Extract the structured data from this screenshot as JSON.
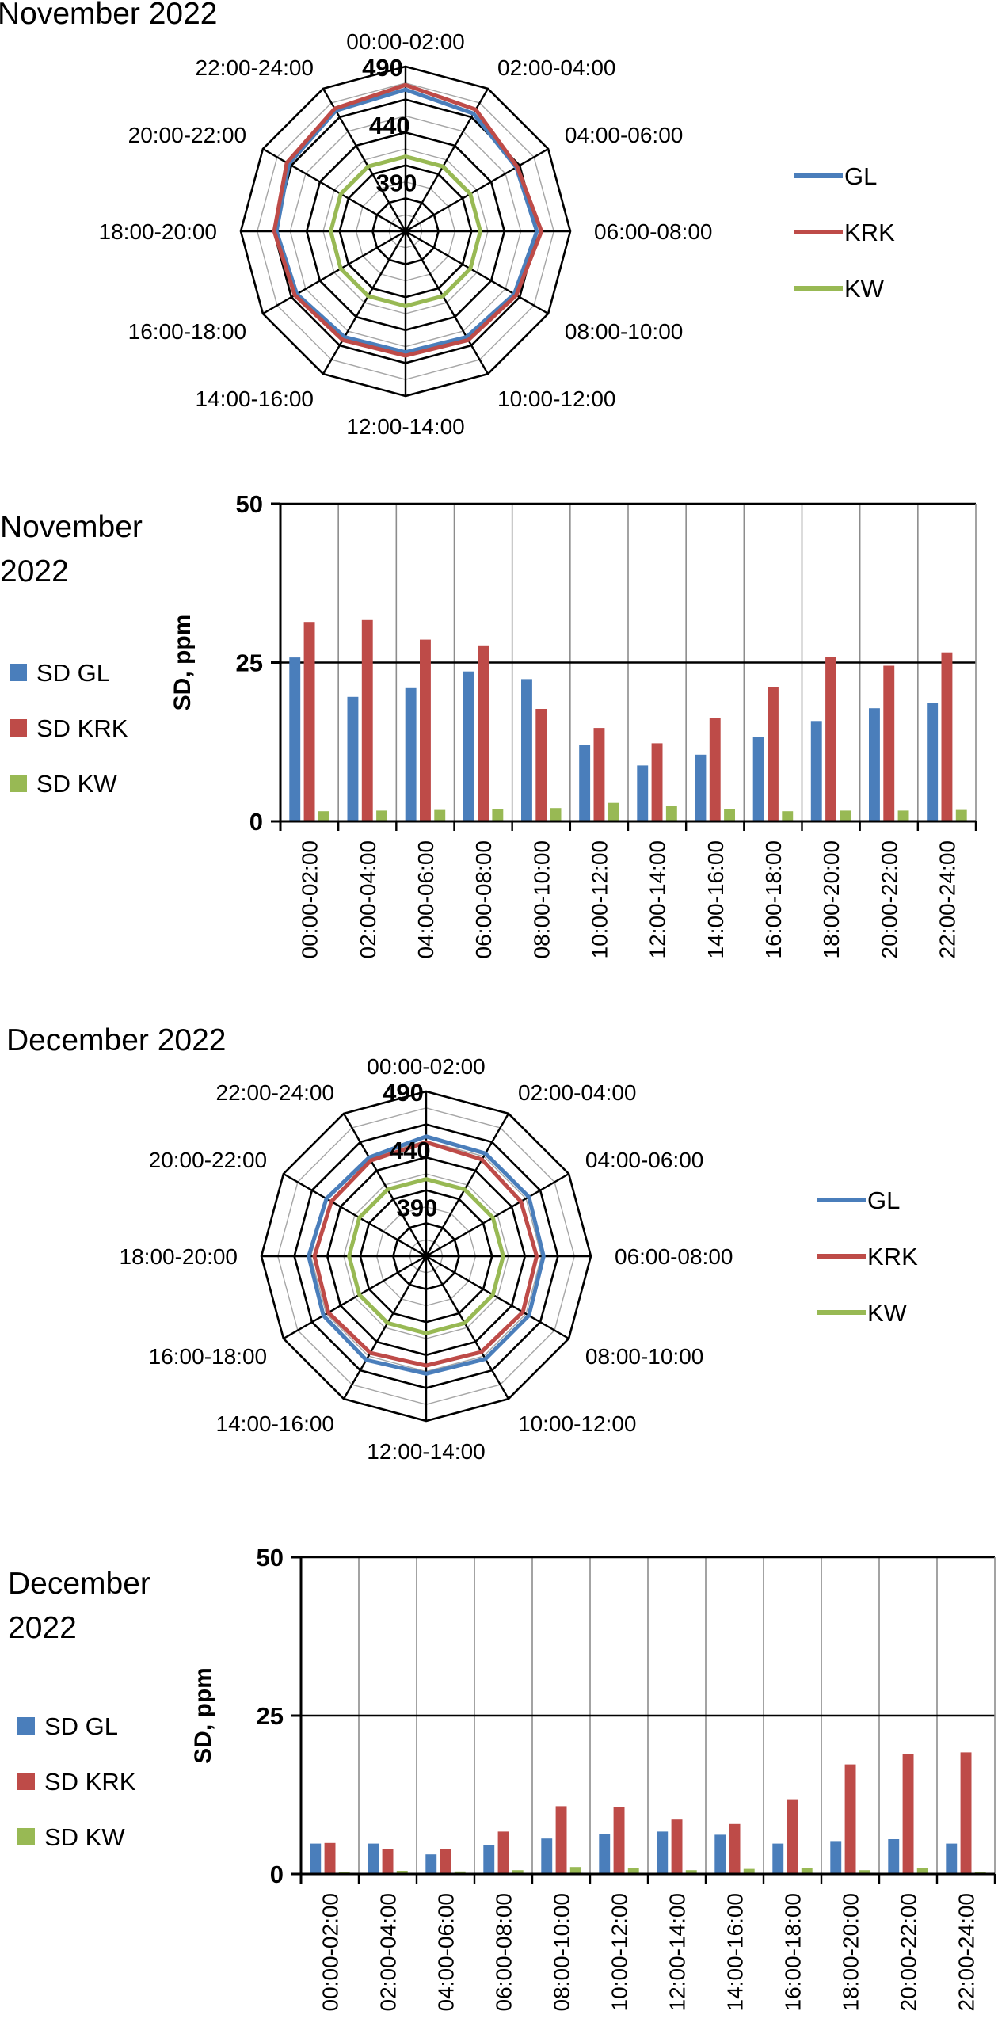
{
  "colors": {
    "GL": "#4a7ebb",
    "KRK": "#be4b48",
    "KW": "#98b954",
    "grid": "#a6a6a6",
    "axis": "#000000"
  },
  "chart_data": [
    {
      "type": "radar",
      "title": "November 2022",
      "categories": [
        "00:00-02:00",
        "02:00-04:00",
        "04:00-06:00",
        "06:00-08:00",
        "08:00-10:00",
        "10:00-12:00",
        "12:00-14:00",
        "14:00-16:00",
        "16:00-18:00",
        "18:00-20:00",
        "20:00-22:00",
        "22:00-24:00"
      ],
      "r_ticks": [
        "390",
        "440",
        "490"
      ],
      "r_range": [
        390,
        490
      ],
      "legend": [
        "GL",
        "KRK",
        "KW"
      ],
      "series": [
        {
          "name": "GL",
          "values": [
            470,
            465,
            458,
            461,
            456,
            453,
            452,
            453,
            456,
            459,
            464,
            468
          ]
        },
        {
          "name": "KRK",
          "values": [
            474,
            469,
            459,
            465,
            458,
            456,
            455,
            456,
            458,
            461,
            466,
            470
          ]
        },
        {
          "name": "KW",
          "values": [
            412,
            412,
            412,
            412,
            412,
            412,
            412,
            412,
            412,
            412,
            412,
            412
          ]
        }
      ]
    },
    {
      "type": "bar",
      "title": "November 2022",
      "ylabel": "SD, ppm",
      "ylim": [
        0,
        50
      ],
      "y_ticks": [
        "0",
        "25",
        "50"
      ],
      "categories": [
        "00:00-02:00",
        "02:00-04:00",
        "04:00-06:00",
        "06:00-08:00",
        "08:00-10:00",
        "10:00-12:00",
        "12:00-14:00",
        "14:00-16:00",
        "16:00-18:00",
        "18:00-20:00",
        "20:00-22:00",
        "22:00-24:00"
      ],
      "series": [
        {
          "name": "SD GL",
          "values": [
            25.8,
            19.6,
            21.1,
            23.6,
            22.4,
            12.1,
            8.8,
            10.5,
            13.3,
            15.8,
            17.8,
            18.6
          ]
        },
        {
          "name": "SD KRK",
          "values": [
            31.4,
            31.7,
            28.6,
            27.7,
            17.7,
            14.7,
            12.3,
            16.3,
            21.2,
            25.9,
            24.5,
            26.6
          ]
        },
        {
          "name": "SD KW",
          "values": [
            1.6,
            1.7,
            1.8,
            1.9,
            2.1,
            2.9,
            2.4,
            2.0,
            1.6,
            1.7,
            1.7,
            1.8
          ]
        }
      ]
    },
    {
      "type": "radar",
      "title": "December 2022",
      "categories": [
        "00:00-02:00",
        "02:00-04:00",
        "04:00-06:00",
        "06:00-08:00",
        "08:00-10:00",
        "10:00-12:00",
        "12:00-14:00",
        "14:00-16:00",
        "16:00-18:00",
        "18:00-20:00",
        "20:00-22:00",
        "22:00-24:00"
      ],
      "r_ticks": [
        "390",
        "440",
        "490"
      ],
      "r_range": [
        390,
        490
      ],
      "legend": [
        "GL",
        "KRK",
        "KW"
      ],
      "series": [
        {
          "name": "GL",
          "values": [
            451,
            450,
            450,
            449,
            450,
            450,
            449,
            451,
            450,
            449,
            447,
            446
          ]
        },
        {
          "name": "KRK",
          "values": [
            446,
            444,
            442,
            443,
            444,
            443,
            442,
            444,
            445,
            444,
            442,
            443
          ]
        },
        {
          "name": "KW",
          "values": [
            414,
            414,
            414,
            414,
            414,
            414,
            414,
            414,
            414,
            414,
            414,
            414
          ]
        }
      ]
    },
    {
      "type": "bar",
      "title": "December 2022",
      "ylabel": "SD, ppm",
      "ylim": [
        0,
        50
      ],
      "y_ticks": [
        "0",
        "25",
        "50"
      ],
      "categories": [
        "00:00-02:00",
        "02:00-04:00",
        "04:00-06:00",
        "06:00-08:00",
        "08:00-10:00",
        "10:00-12:00",
        "12:00-14:00",
        "14:00-16:00",
        "16:00-18:00",
        "18:00-20:00",
        "20:00-22:00",
        "22:00-24:00"
      ],
      "series": [
        {
          "name": "SD GL",
          "values": [
            4.8,
            4.8,
            3.1,
            4.6,
            5.6,
            6.3,
            6.7,
            6.2,
            4.8,
            5.2,
            5.5,
            4.8
          ]
        },
        {
          "name": "SD KRK",
          "values": [
            4.9,
            3.9,
            3.9,
            6.7,
            10.7,
            10.6,
            8.6,
            7.9,
            11.8,
            17.3,
            18.9,
            19.2
          ]
        },
        {
          "name": "SD KW",
          "values": [
            0.3,
            0.5,
            0.4,
            0.6,
            1.1,
            0.9,
            0.6,
            0.8,
            0.9,
            0.6,
            0.9,
            0.3
          ]
        }
      ]
    }
  ]
}
